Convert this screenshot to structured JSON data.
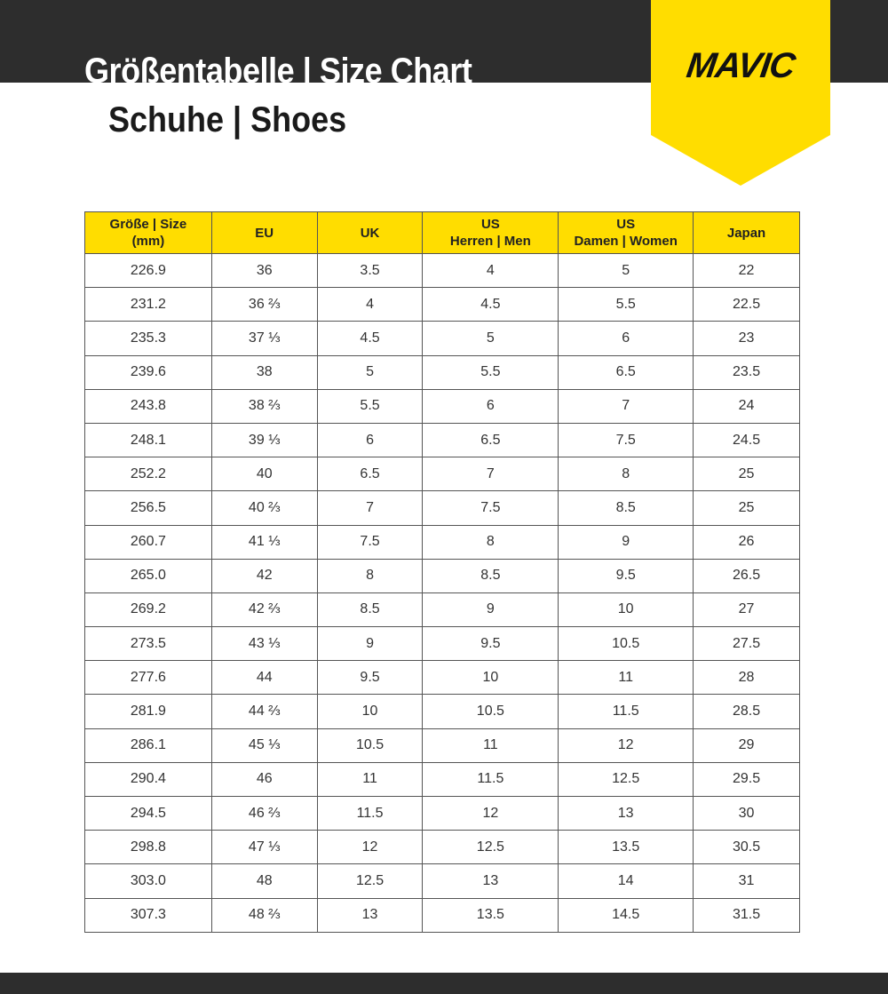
{
  "header": {
    "title": "Größentabelle | Size Chart",
    "subtitle": "Schuhe | Shoes",
    "logo_text": "MAVIC",
    "brand_color": "#ffdd00",
    "bar_color": "#2d2d2d"
  },
  "table": {
    "columns": [
      [
        "Größe | Size",
        "(mm)"
      ],
      [
        "EU"
      ],
      [
        "UK"
      ],
      [
        "US",
        "Herren | Men"
      ],
      [
        "US",
        "Damen | Women"
      ],
      [
        "Japan"
      ]
    ],
    "rows": [
      [
        "226.9",
        "36",
        "3.5",
        "4",
        "5",
        "22"
      ],
      [
        "231.2",
        "36 ⅔",
        "4",
        "4.5",
        "5.5",
        "22.5"
      ],
      [
        "235.3",
        "37 ⅓",
        "4.5",
        "5",
        "6",
        "23"
      ],
      [
        "239.6",
        "38",
        "5",
        "5.5",
        "6.5",
        "23.5"
      ],
      [
        "243.8",
        "38 ⅔",
        "5.5",
        "6",
        "7",
        "24"
      ],
      [
        "248.1",
        "39 ⅓",
        "6",
        "6.5",
        "7.5",
        "24.5"
      ],
      [
        "252.2",
        "40",
        "6.5",
        "7",
        "8",
        "25"
      ],
      [
        "256.5",
        "40 ⅔",
        "7",
        "7.5",
        "8.5",
        "25"
      ],
      [
        "260.7",
        "41 ⅓",
        "7.5",
        "8",
        "9",
        "26"
      ],
      [
        "265.0",
        "42",
        "8",
        "8.5",
        "9.5",
        "26.5"
      ],
      [
        "269.2",
        "42 ⅔",
        "8.5",
        "9",
        "10",
        "27"
      ],
      [
        "273.5",
        "43 ⅓",
        "9",
        "9.5",
        "10.5",
        "27.5"
      ],
      [
        "277.6",
        "44",
        "9.5",
        "10",
        "11",
        "28"
      ],
      [
        "281.9",
        "44 ⅔",
        "10",
        "10.5",
        "11.5",
        "28.5"
      ],
      [
        "286.1",
        "45 ⅓",
        "10.5",
        "11",
        "12",
        "29"
      ],
      [
        "290.4",
        "46",
        "11",
        "11.5",
        "12.5",
        "29.5"
      ],
      [
        "294.5",
        "46 ⅔",
        "11.5",
        "12",
        "13",
        "30"
      ],
      [
        "298.8",
        "47 ⅓",
        "12",
        "12.5",
        "13.5",
        "30.5"
      ],
      [
        "303.0",
        "48",
        "12.5",
        "13",
        "14",
        "31"
      ],
      [
        "307.3",
        "48 ⅔",
        "13",
        "13.5",
        "14.5",
        "31.5"
      ]
    ]
  }
}
